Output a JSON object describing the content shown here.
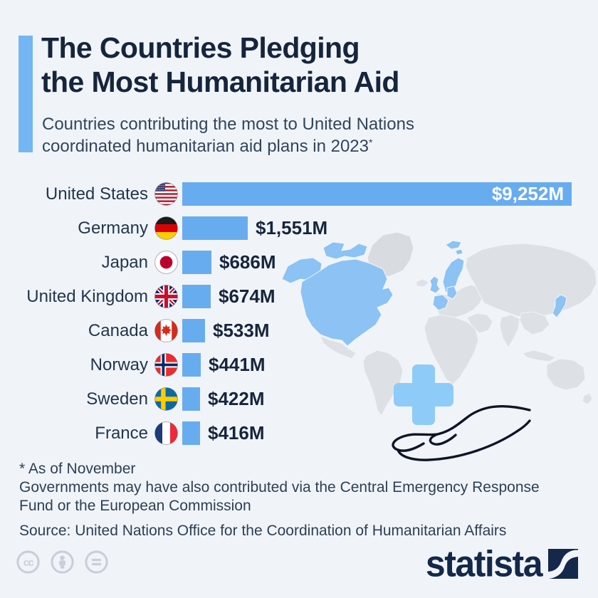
{
  "title": {
    "line1": "The Countries Pledging",
    "line2": "the Most Humanitarian Aid"
  },
  "subtitle": {
    "line1": "Countries contributing the most to United Nations",
    "line2": "coordinated humanitarian aid plans in 2023",
    "asterisk": "*"
  },
  "chart_data": {
    "type": "bar",
    "orientation": "horizontal",
    "title": "Countries pledging the most humanitarian aid, 2023",
    "unit": "USD millions",
    "categories": [
      "United States",
      "Germany",
      "Japan",
      "United Kingdom",
      "Canada",
      "Norway",
      "Sweden",
      "France"
    ],
    "values": [
      9252,
      1551,
      686,
      674,
      533,
      441,
      422,
      416
    ],
    "value_labels": [
      "$9,252M",
      "$1,551M",
      "$686M",
      "$674M",
      "$533M",
      "$441M",
      "$422M",
      "$416M"
    ],
    "flags": [
      "us",
      "de",
      "jp",
      "gb",
      "ca",
      "no",
      "se",
      "fr"
    ],
    "xlim": [
      0,
      9252
    ],
    "bar_color": "#68acf0",
    "grid": false,
    "legend": "none",
    "value_label_position_first_row": "inside-end",
    "value_label_position_other_rows": "outside-end"
  },
  "background_art": {
    "map_highlight_color": "#8cc2f4",
    "map_base_color": "#dde1e6",
    "highlighted_regions": [
      "United States",
      "Canada",
      "United Kingdom",
      "France",
      "Germany",
      "Norway",
      "Sweden",
      "Japan"
    ],
    "cross_color": "#8ecbf8"
  },
  "footnotes": {
    "note1": "* As of November",
    "note2_line1": "Governments may have also contributed via the Central Emergency Response",
    "note2_line2": "Fund or the European Commission",
    "source": "Source: United Nations Office for the Coordination of Humanitarian Affairs"
  },
  "branding": {
    "logo_text": "statista"
  },
  "license_icons": [
    "cc-icon",
    "attribution-person-icon",
    "equals-icon"
  ]
}
